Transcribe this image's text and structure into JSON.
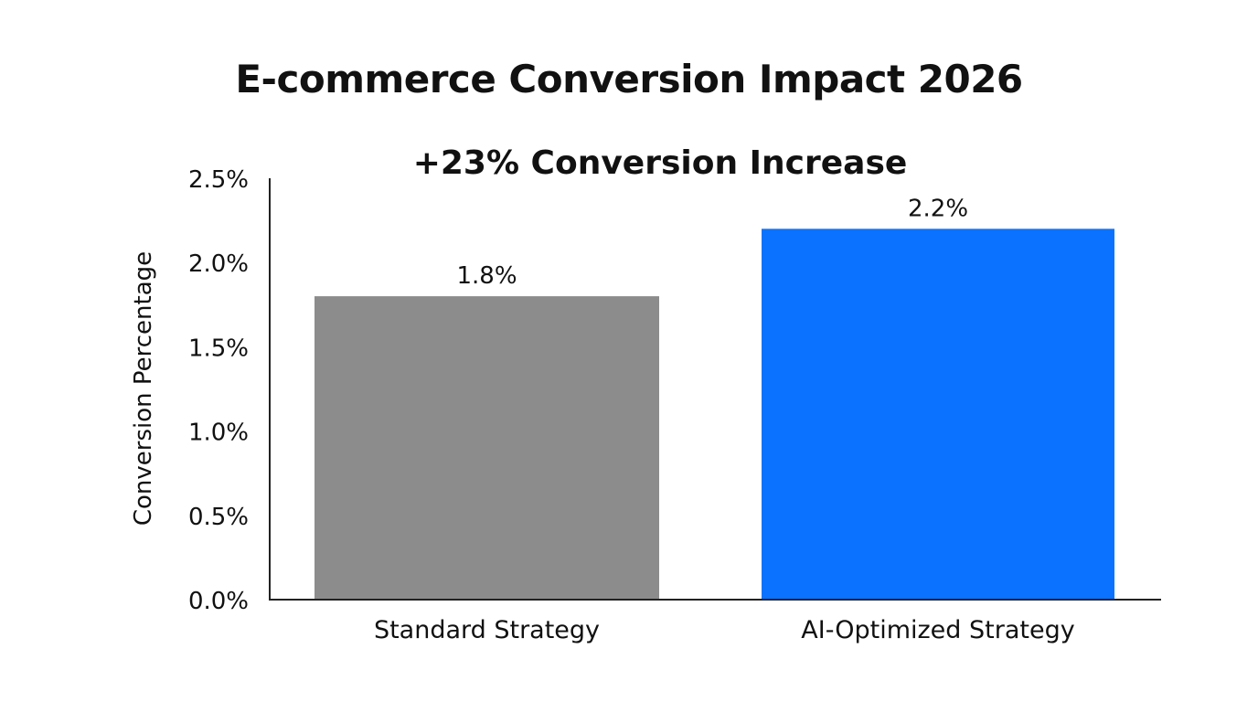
{
  "chart_data": {
    "type": "bar",
    "title": "E-commerce Conversion Impact 2026",
    "annotation": "+23% Conversion Increase",
    "categories": [
      "Standard Strategy",
      "AI-Optimized Strategy"
    ],
    "values": [
      1.8,
      2.2
    ],
    "data_labels": [
      "1.8%",
      "2.2%"
    ],
    "colors": [
      "#8c8c8c",
      "#0a72ff"
    ],
    "xlabel": "",
    "ylabel": "Conversion Percentage",
    "ylim": [
      0,
      2.5
    ],
    "yticks": [
      0,
      0.5,
      1.0,
      1.5,
      2.0,
      2.5
    ],
    "ytick_labels": [
      "0.0%",
      "0.5%",
      "1.0%",
      "1.5%",
      "2.0%",
      "2.5%"
    ],
    "grid": false,
    "legend": "none"
  }
}
